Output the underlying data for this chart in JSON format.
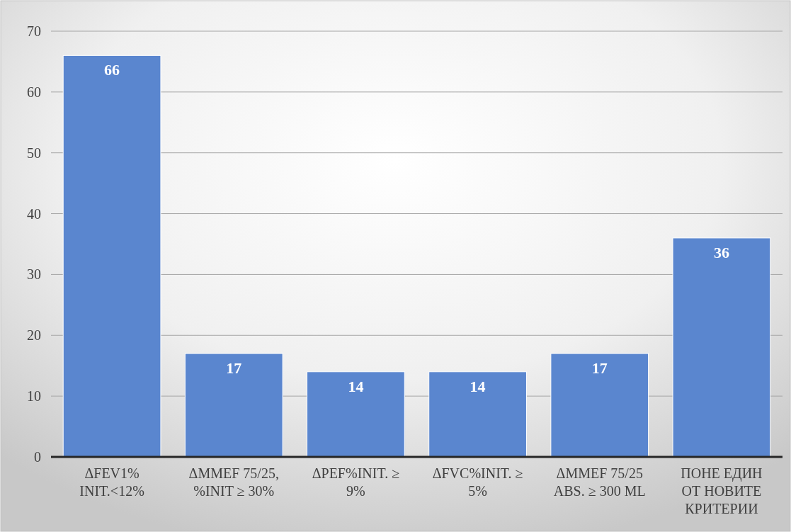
{
  "chart_data": {
    "type": "bar",
    "categories": [
      "ΔFEV1%\nINIT.<12%",
      "ΔMMEF 75/25,\n%INIT ≥ 30%",
      "ΔPEF%INIT. ≥\n9%",
      "ΔFVC%INIT. ≥\n5%",
      "ΔMMEF 75/25\nABS. ≥ 300 ML",
      "ПОНЕ ЕДИН\nОТ НОВИТЕ\nКРИТЕРИИ"
    ],
    "values": [
      66,
      17,
      14,
      14,
      17,
      36
    ],
    "color": "#5a86cf",
    "ylim": [
      0,
      70
    ],
    "yticks": [
      0,
      10,
      20,
      30,
      40,
      50,
      60,
      70
    ],
    "grid": "y",
    "data_labels": true
  }
}
